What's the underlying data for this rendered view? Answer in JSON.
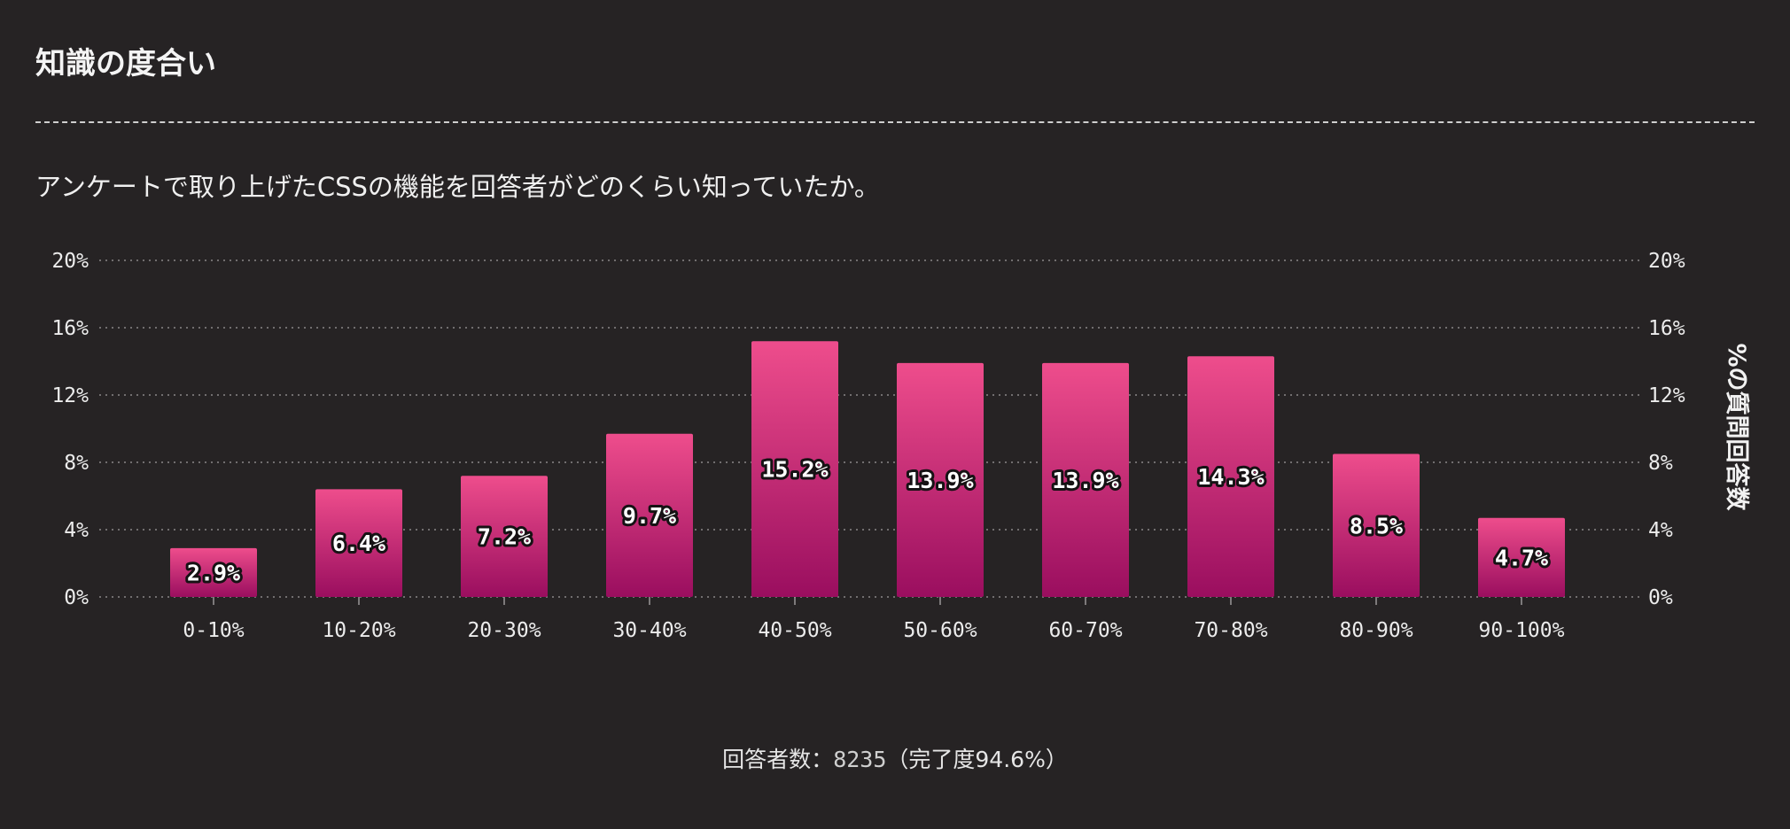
{
  "header": {
    "title": "知識の度合い",
    "subtitle": "アンケートで取り上げたCSSの機能を回答者がどのくらい知っていたか。"
  },
  "footer": {
    "respondents_label": "回答者数：",
    "respondents_count": "8235",
    "completion_text": "（完了度94.6%）"
  },
  "colors": {
    "background": "#262324",
    "bar_top": "#ee4d8c",
    "bar_bottom": "#9a0e5f"
  },
  "chart_data": {
    "type": "bar",
    "categories": [
      "0-10%",
      "10-20%",
      "20-30%",
      "30-40%",
      "40-50%",
      "50-60%",
      "60-70%",
      "70-80%",
      "80-90%",
      "90-100%"
    ],
    "values": [
      2.9,
      6.4,
      7.2,
      9.7,
      15.2,
      13.9,
      13.9,
      14.3,
      8.5,
      4.7
    ],
    "value_labels": [
      "2.9%",
      "6.4%",
      "7.2%",
      "9.7%",
      "15.2%",
      "13.9%",
      "13.9%",
      "14.3%",
      "8.5%",
      "4.7%"
    ],
    "yticks": [
      0,
      4,
      8,
      12,
      16,
      20
    ],
    "ytick_labels": [
      "0%",
      "4%",
      "8%",
      "12%",
      "16%",
      "20%"
    ],
    "ylim": [
      0,
      20
    ],
    "ylabel_right": "%の質問回答数",
    "grid": true
  }
}
